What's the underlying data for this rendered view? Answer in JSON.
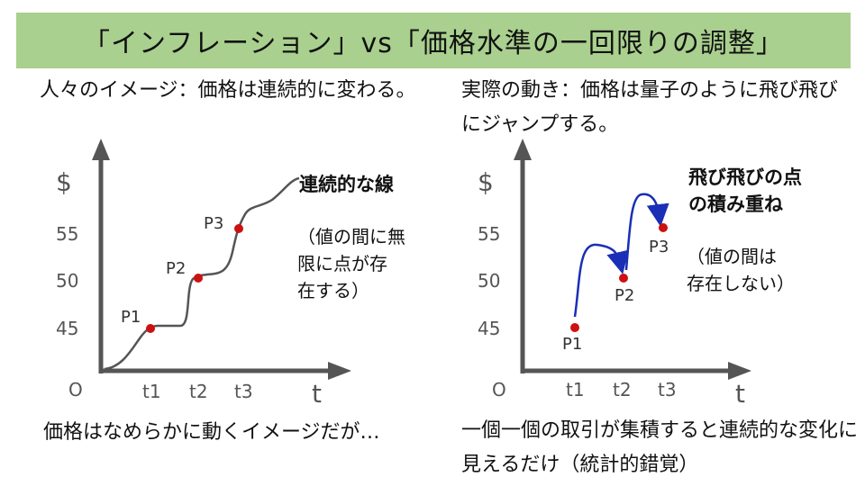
{
  "title": "「インフレーション」vs「価格水準の一回限りの調整」",
  "left": {
    "description": "人々のイメージ：価格は連続的に変わる。",
    "footer": "価格はなめらかに動くイメージだが…",
    "annotation_title": "連続的な線",
    "annotation_lines": [
      "（値の間に無",
      "限に点が存",
      "在する）"
    ]
  },
  "right": {
    "description": "実際の動き：価格は量子のように飛び飛びにジャンプする。",
    "footer": "一個一個の取引が集積すると連続的な変化に見えるだけ（統計的錯覚）",
    "annotation_title_lines": [
      "飛び飛びの点",
      "の積み重ね"
    ],
    "annotation_lines": [
      "（値の間は",
      "存在しない）"
    ]
  },
  "axes": {
    "y_symbol": "$",
    "x_symbol": "t",
    "origin": "O",
    "y_ticks": [
      "55",
      "50",
      "45"
    ],
    "x_ticks": [
      "t1",
      "t2",
      "t3"
    ]
  },
  "points": [
    {
      "label": "P1",
      "t": "t1",
      "price": 45
    },
    {
      "label": "P2",
      "t": "t2",
      "price": 50
    },
    {
      "label": "P3",
      "t": "t3",
      "price": 55
    }
  ],
  "colors": {
    "title_bg": "#a9d08e",
    "axis": "#555555",
    "curve": "#555555",
    "point": "#cc1111",
    "jump_arrow": "#1a2fb5"
  }
}
